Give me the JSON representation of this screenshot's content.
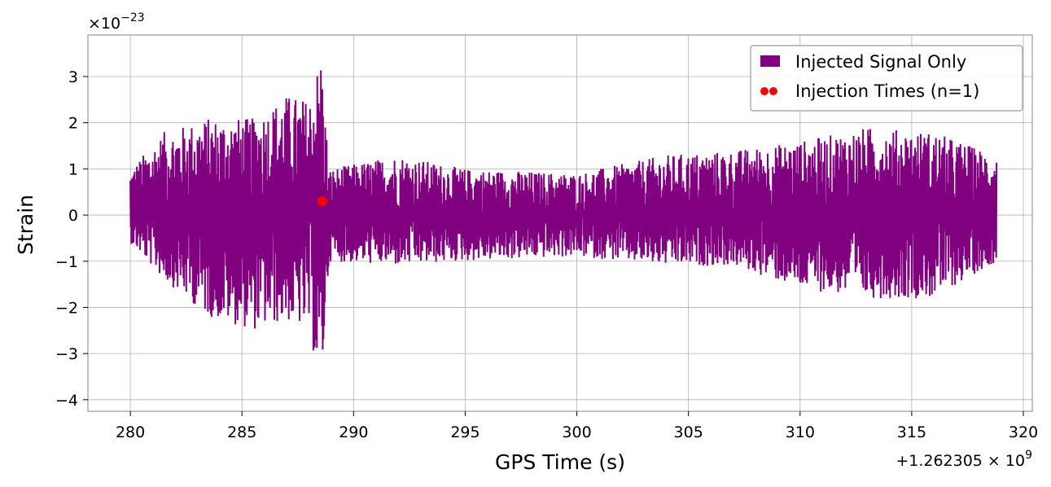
{
  "chart_data": {
    "type": "line",
    "xlabel": "GPS Time (s)",
    "ylabel": "Strain",
    "x_offset_label": "+1.262305 × 10",
    "x_offset_exp": "9",
    "y_scale_label": "×10",
    "y_scale_exp": "−23",
    "xlim": [
      278.1,
      320.4
    ],
    "ylim": [
      -4.25,
      3.9
    ],
    "x_ticks": [
      280,
      285,
      290,
      295,
      300,
      305,
      310,
      315,
      320
    ],
    "y_ticks": [
      -4,
      -3,
      -2,
      -1,
      0,
      1,
      2,
      3
    ],
    "y_tick_labels": [
      "−4",
      "−3",
      "−2",
      "−1",
      "0",
      "1",
      "2",
      "3"
    ],
    "grid": true,
    "legend_position": "top-right",
    "series": [
      {
        "name": "Injected Signal Only",
        "kind": "line",
        "color": "#800080",
        "x_range": [
          280.0,
          318.8
        ],
        "envelope": [
          {
            "x": 280.0,
            "lo": -0.6,
            "hi": 1.0
          },
          {
            "x": 281.5,
            "lo": -1.4,
            "hi": 1.8
          },
          {
            "x": 283.5,
            "lo": -2.2,
            "hi": 2.1
          },
          {
            "x": 285.5,
            "lo": -2.5,
            "hi": 2.1
          },
          {
            "x": 287.0,
            "lo": -2.3,
            "hi": 2.6
          },
          {
            "x": 288.0,
            "lo": -2.5,
            "hi": 2.5
          },
          {
            "x": 288.55,
            "lo": -3.85,
            "hi": 3.55
          },
          {
            "x": 288.9,
            "lo": -1.0,
            "hi": 1.0
          },
          {
            "x": 292.0,
            "lo": -1.1,
            "hi": 1.3
          },
          {
            "x": 295.0,
            "lo": -1.0,
            "hi": 1.0
          },
          {
            "x": 300.0,
            "lo": -0.9,
            "hi": 0.9
          },
          {
            "x": 304.0,
            "lo": -1.1,
            "hi": 1.3
          },
          {
            "x": 307.0,
            "lo": -1.1,
            "hi": 1.4
          },
          {
            "x": 310.0,
            "lo": -1.6,
            "hi": 1.6
          },
          {
            "x": 313.0,
            "lo": -1.8,
            "hi": 1.9
          },
          {
            "x": 316.0,
            "lo": -1.8,
            "hi": 1.8
          },
          {
            "x": 318.8,
            "lo": -1.0,
            "hi": 1.3
          }
        ]
      },
      {
        "name": "Injection Times (n=1)",
        "kind": "scatter",
        "color": "#ff0000",
        "points": [
          {
            "x": 288.6,
            "y": 0.3
          }
        ]
      }
    ]
  }
}
